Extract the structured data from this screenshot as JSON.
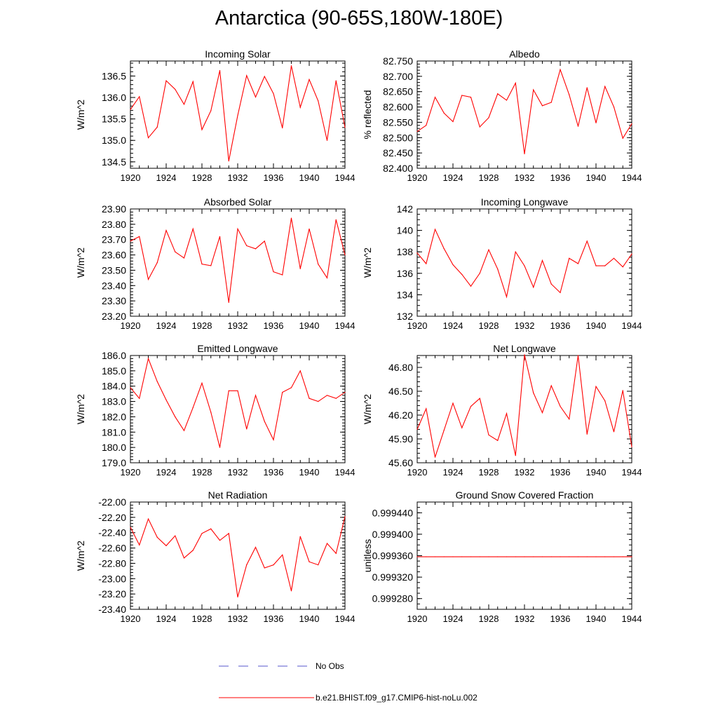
{
  "figure": {
    "title": "Antarctica (90-65S,180W-180E)"
  },
  "legend": [
    {
      "label": "No Obs",
      "color": "#5555cc",
      "style": "dashed"
    },
    {
      "label": "b.e21.BHIST.f09_g17.CMIP6-hist-noLu.002",
      "color": "#ff0000",
      "style": "solid"
    }
  ],
  "chart_data": [
    {
      "type": "line",
      "title": "Incoming Solar",
      "ylabel": "W/m^2",
      "xlim": [
        1920,
        1944
      ],
      "ylim": [
        134.35,
        136.85
      ],
      "x_ticks": [
        1920,
        1924,
        1928,
        1932,
        1936,
        1940,
        1944
      ],
      "y_ticks": [
        "134.5",
        "135.0",
        "135.5",
        "136.0",
        "136.5"
      ],
      "y_tick_values": [
        134.5,
        135.0,
        135.5,
        136.0,
        136.5
      ],
      "minor_step": 0.1,
      "series": [
        {
          "color": "#ff0000",
          "x": [
            1920,
            1921,
            1922,
            1923,
            1924,
            1925,
            1926,
            1927,
            1928,
            1929,
            1930,
            1931,
            1932,
            1933,
            1934,
            1935,
            1936,
            1937,
            1938,
            1939,
            1940,
            1941,
            1942,
            1943,
            1944
          ],
          "values": [
            135.72,
            136.02,
            135.06,
            135.31,
            136.39,
            136.19,
            135.84,
            136.37,
            135.25,
            135.69,
            136.63,
            134.52,
            135.58,
            136.51,
            136.01,
            136.49,
            136.09,
            135.29,
            136.74,
            135.77,
            136.42,
            135.92,
            135.0,
            136.39,
            135.3
          ]
        }
      ]
    },
    {
      "type": "line",
      "title": "Albedo",
      "ylabel": "% reflected",
      "xlim": [
        1920,
        1944
      ],
      "ylim": [
        82.4,
        82.75
      ],
      "x_ticks": [
        1920,
        1924,
        1928,
        1932,
        1936,
        1940,
        1944
      ],
      "y_ticks": [
        "82.400",
        "82.450",
        "82.500",
        "82.550",
        "82.600",
        "82.650",
        "82.700",
        "82.750"
      ],
      "y_tick_values": [
        82.4,
        82.45,
        82.5,
        82.55,
        82.6,
        82.65,
        82.7,
        82.75
      ],
      "minor_step": 0.01,
      "series": [
        {
          "color": "#ff0000",
          "x": [
            1920,
            1921,
            1922,
            1923,
            1924,
            1925,
            1926,
            1927,
            1928,
            1929,
            1930,
            1931,
            1932,
            1933,
            1934,
            1935,
            1936,
            1937,
            1938,
            1939,
            1940,
            1941,
            1942,
            1943,
            1944
          ],
          "values": [
            82.52,
            82.54,
            82.632,
            82.58,
            82.552,
            82.638,
            82.632,
            82.535,
            82.565,
            82.643,
            82.622,
            82.678,
            82.447,
            82.656,
            82.604,
            82.615,
            82.722,
            82.64,
            82.537,
            82.663,
            82.548,
            82.667,
            82.6,
            82.498,
            82.545
          ]
        }
      ]
    },
    {
      "type": "line",
      "title": "Absorbed Solar",
      "ylabel": "W/m^2",
      "xlim": [
        1920,
        1944
      ],
      "ylim": [
        23.2,
        23.9
      ],
      "x_ticks": [
        1920,
        1924,
        1928,
        1932,
        1936,
        1940,
        1944
      ],
      "y_ticks": [
        "23.20",
        "23.30",
        "23.40",
        "23.50",
        "23.60",
        "23.70",
        "23.80",
        "23.90"
      ],
      "y_tick_values": [
        23.2,
        23.3,
        23.4,
        23.5,
        23.6,
        23.7,
        23.8,
        23.9
      ],
      "minor_step": 0.02,
      "series": [
        {
          "color": "#ff0000",
          "x": [
            1920,
            1921,
            1922,
            1923,
            1924,
            1925,
            1926,
            1927,
            1928,
            1929,
            1930,
            1931,
            1932,
            1933,
            1934,
            1935,
            1936,
            1937,
            1938,
            1939,
            1940,
            1941,
            1942,
            1943,
            1944
          ],
          "values": [
            23.69,
            23.72,
            23.44,
            23.55,
            23.76,
            23.62,
            23.58,
            23.77,
            23.54,
            23.53,
            23.72,
            23.29,
            23.77,
            23.66,
            23.64,
            23.69,
            23.49,
            23.47,
            23.84,
            23.51,
            23.77,
            23.54,
            23.45,
            23.83,
            23.6
          ]
        }
      ]
    },
    {
      "type": "line",
      "title": "Incoming Longwave",
      "ylabel": "W/m^2",
      "xlim": [
        1920,
        1944
      ],
      "ylim": [
        132,
        142
      ],
      "x_ticks": [
        1920,
        1924,
        1928,
        1932,
        1936,
        1940,
        1944
      ],
      "y_ticks": [
        "132",
        "134",
        "136",
        "138",
        "140",
        "142"
      ],
      "y_tick_values": [
        132,
        134,
        136,
        138,
        140,
        142
      ],
      "minor_step": 0.5,
      "series": [
        {
          "color": "#ff0000",
          "x": [
            1920,
            1921,
            1922,
            1923,
            1924,
            1925,
            1926,
            1927,
            1928,
            1929,
            1930,
            1931,
            1932,
            1933,
            1934,
            1935,
            1936,
            1937,
            1938,
            1939,
            1940,
            1941,
            1942,
            1943,
            1944
          ],
          "values": [
            137.9,
            136.9,
            140.1,
            138.3,
            136.8,
            135.9,
            134.8,
            136.0,
            138.2,
            136.4,
            133.8,
            138.0,
            136.7,
            134.7,
            137.2,
            135.0,
            134.2,
            137.4,
            136.9,
            139.0,
            136.7,
            136.7,
            137.4,
            136.6,
            137.8
          ]
        }
      ]
    },
    {
      "type": "line",
      "title": "Emitted Longwave",
      "ylabel": "W/m^2",
      "xlim": [
        1920,
        1944
      ],
      "ylim": [
        179,
        186
      ],
      "x_ticks": [
        1920,
        1924,
        1928,
        1932,
        1936,
        1940,
        1944
      ],
      "y_ticks": [
        "179.0",
        "180.0",
        "181.0",
        "182.0",
        "183.0",
        "184.0",
        "185.0",
        "186.0"
      ],
      "y_tick_values": [
        179,
        180,
        181,
        182,
        183,
        184,
        185,
        186
      ],
      "minor_step": 0.2,
      "series": [
        {
          "color": "#ff0000",
          "x": [
            1920,
            1921,
            1922,
            1923,
            1924,
            1925,
            1926,
            1927,
            1928,
            1929,
            1930,
            1931,
            1932,
            1933,
            1934,
            1935,
            1936,
            1937,
            1938,
            1939,
            1940,
            1941,
            1942,
            1943,
            1944
          ],
          "values": [
            183.9,
            183.2,
            185.8,
            184.3,
            183.1,
            182.0,
            181.1,
            182.6,
            184.2,
            182.3,
            180.0,
            183.7,
            183.7,
            181.2,
            183.4,
            181.7,
            180.5,
            183.6,
            183.9,
            185.0,
            183.2,
            183.0,
            183.4,
            183.2,
            183.6
          ]
        }
      ]
    },
    {
      "type": "line",
      "title": "Net Longwave",
      "ylabel": "W/m^2",
      "xlim": [
        1920,
        1944
      ],
      "ylim": [
        45.6,
        46.95
      ],
      "x_ticks": [
        1920,
        1924,
        1928,
        1932,
        1936,
        1940,
        1944
      ],
      "y_ticks": [
        "45.60",
        "45.90",
        "46.20",
        "46.50",
        "46.80"
      ],
      "y_tick_values": [
        45.6,
        45.9,
        46.2,
        46.5,
        46.8
      ],
      "minor_step": 0.06,
      "series": [
        {
          "color": "#ff0000",
          "x": [
            1920,
            1921,
            1922,
            1923,
            1924,
            1925,
            1926,
            1927,
            1928,
            1929,
            1930,
            1931,
            1932,
            1933,
            1934,
            1935,
            1936,
            1937,
            1938,
            1939,
            1940,
            1941,
            1942,
            1943,
            1944
          ],
          "values": [
            46.02,
            46.28,
            45.67,
            46.01,
            46.35,
            46.04,
            46.31,
            46.41,
            45.95,
            45.88,
            46.22,
            45.69,
            46.96,
            46.48,
            46.23,
            46.57,
            46.31,
            46.15,
            46.95,
            45.96,
            46.56,
            46.38,
            45.99,
            46.51,
            45.8
          ]
        }
      ]
    },
    {
      "type": "line",
      "title": "Net Radiation",
      "ylabel": "W/m^2",
      "xlim": [
        1920,
        1944
      ],
      "ylim": [
        -23.4,
        -22.0
      ],
      "x_ticks": [
        1920,
        1924,
        1928,
        1932,
        1936,
        1940,
        1944
      ],
      "y_ticks": [
        "-23.40",
        "-23.20",
        "-23.00",
        "-22.80",
        "-22.60",
        "-22.40",
        "-22.20",
        "-22.00"
      ],
      "y_tick_values": [
        -23.4,
        -23.2,
        -23.0,
        -22.8,
        -22.6,
        -22.4,
        -22.2,
        -22.0
      ],
      "minor_step": 0.04,
      "series": [
        {
          "color": "#ff0000",
          "x": [
            1920,
            1921,
            1922,
            1923,
            1924,
            1925,
            1926,
            1927,
            1928,
            1929,
            1930,
            1931,
            1932,
            1933,
            1934,
            1935,
            1936,
            1937,
            1938,
            1939,
            1940,
            1941,
            1942,
            1943,
            1944
          ],
          "values": [
            -22.33,
            -22.56,
            -22.22,
            -22.46,
            -22.57,
            -22.44,
            -22.73,
            -22.63,
            -22.41,
            -22.35,
            -22.5,
            -22.41,
            -23.24,
            -22.82,
            -22.59,
            -22.86,
            -22.82,
            -22.69,
            -23.16,
            -22.45,
            -22.78,
            -22.82,
            -22.54,
            -22.67,
            -22.19
          ]
        }
      ]
    },
    {
      "type": "line",
      "title": "Ground Snow Covered Fraction",
      "ylabel": "unitless",
      "xlim": [
        1920,
        1944
      ],
      "ylim": [
        0.99926,
        0.99946
      ],
      "x_ticks": [
        1920,
        1924,
        1928,
        1932,
        1936,
        1940,
        1944
      ],
      "y_ticks": [
        "0.999280",
        "0.999320",
        "0.999360",
        "0.999400",
        "0.999440"
      ],
      "y_tick_values": [
        0.99928,
        0.99932,
        0.99936,
        0.9994,
        0.99944
      ],
      "minor_step": 1e-05,
      "series": [
        {
          "color": "#ff0000",
          "x": [
            1920,
            1921,
            1922,
            1923,
            1924,
            1925,
            1926,
            1927,
            1928,
            1929,
            1930,
            1931,
            1932,
            1933,
            1934,
            1935,
            1936,
            1937,
            1938,
            1939,
            1940,
            1941,
            1942,
            1943,
            1944
          ],
          "values": [
            0.999358,
            0.999358,
            0.999358,
            0.999358,
            0.999358,
            0.999358,
            0.999358,
            0.999358,
            0.999358,
            0.999358,
            0.999358,
            0.999358,
            0.999358,
            0.999358,
            0.999358,
            0.999358,
            0.999358,
            0.999358,
            0.999358,
            0.999358,
            0.999358,
            0.999358,
            0.999358,
            0.999358,
            0.999358
          ]
        }
      ]
    }
  ]
}
